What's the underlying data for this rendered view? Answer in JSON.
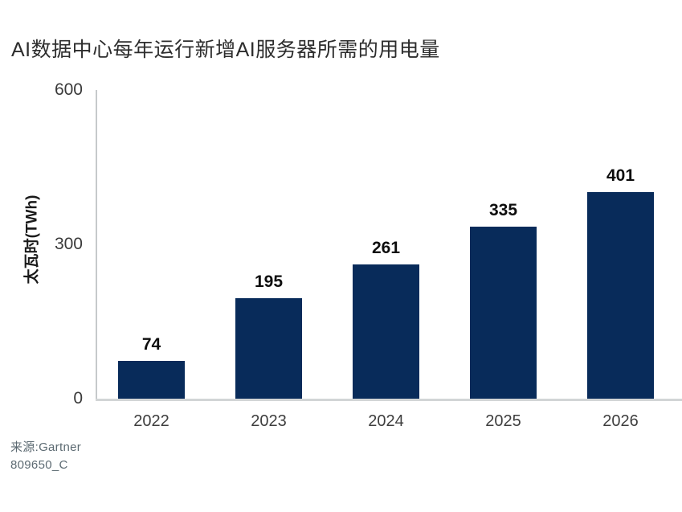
{
  "title": "AI数据中心每年运行新增AI服务器所需的用电量",
  "chart_data": {
    "type": "bar",
    "title": "AI数据中心每年运行新增AI服务器所需的用电量",
    "categories": [
      "2022",
      "2023",
      "2024",
      "2025",
      "2026"
    ],
    "values": [
      74,
      195,
      261,
      335,
      401
    ],
    "xlabel": "",
    "ylabel": "太瓦时(TWh)",
    "ylim": [
      0,
      600
    ],
    "yticks": [
      0,
      300,
      600
    ],
    "grid": false,
    "legend": "none",
    "value_labels_shown": true,
    "bar_color": "#082B5A",
    "axis_color": "#c9cccd",
    "label_color": "#3e3e3e"
  },
  "source": {
    "line1": "来源:Gartner",
    "line2": "809650_C"
  }
}
